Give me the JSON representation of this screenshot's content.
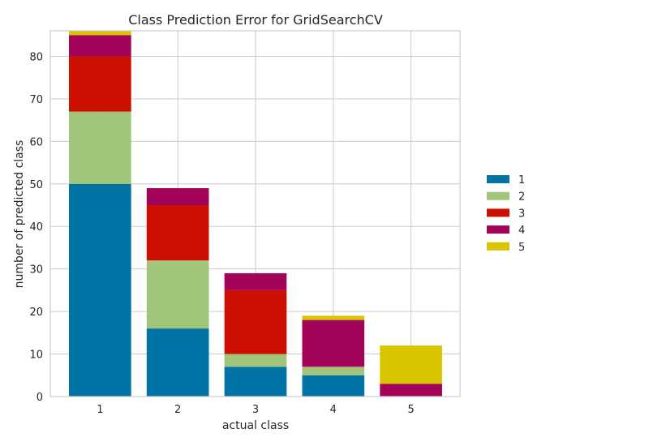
{
  "chart_data": {
    "type": "bar",
    "stacked": true,
    "title": "Class Prediction Error for GridSearchCV",
    "xlabel": "actual class",
    "ylabel": "number of predicted class",
    "categories": [
      "1",
      "2",
      "3",
      "4",
      "5"
    ],
    "ylim": [
      0,
      86
    ],
    "yticks": [
      0,
      10,
      20,
      30,
      40,
      50,
      60,
      70,
      80
    ],
    "grid": true,
    "legend_placement": "right",
    "series": [
      {
        "name": "1",
        "color": "#0173a5",
        "values": [
          50,
          16,
          7,
          5,
          0
        ]
      },
      {
        "name": "2",
        "color": "#a1c57a",
        "values": [
          17,
          16,
          3,
          2,
          0
        ]
      },
      {
        "name": "3",
        "color": "#cc0f00",
        "values": [
          13,
          13,
          15,
          0,
          0
        ]
      },
      {
        "name": "4",
        "color": "#a3045a",
        "values": [
          5,
          4,
          4,
          11,
          3
        ]
      },
      {
        "name": "5",
        "color": "#d8c500",
        "values": [
          1,
          0,
          0,
          1,
          9
        ]
      }
    ]
  }
}
